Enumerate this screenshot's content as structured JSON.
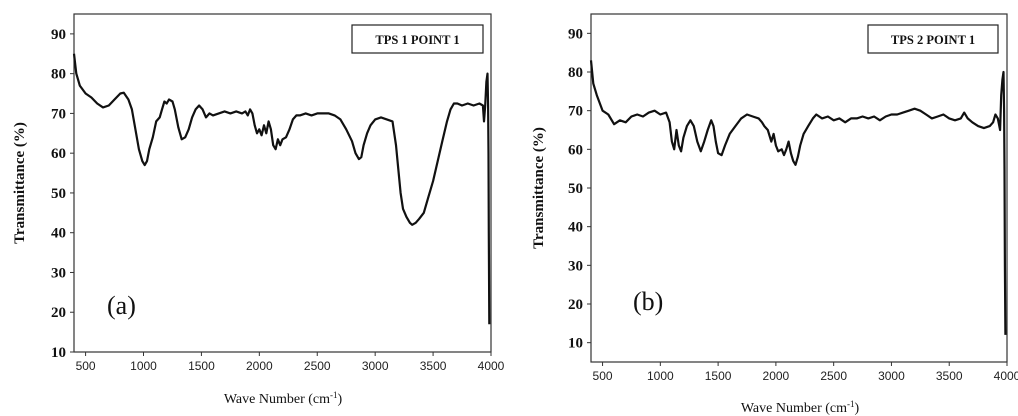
{
  "chart_data": [
    {
      "type": "line",
      "panel_label": "(a)",
      "legend": "TPS 1 POINT 1",
      "xlabel": "Wave Number (cm",
      "xlabel_sup": "-1",
      "xlabel_close": ")",
      "ylabel": "Transmittance (%)",
      "xlim": [
        400,
        4000
      ],
      "ylim": [
        10,
        95
      ],
      "xticks": [
        500,
        1000,
        1500,
        2000,
        2500,
        3000,
        3500,
        4000
      ],
      "yticks": [
        10,
        20,
        30,
        40,
        50,
        60,
        70,
        80,
        90
      ],
      "series": [
        {
          "points": [
            [
              400,
              85
            ],
            [
              420,
              80
            ],
            [
              450,
              77
            ],
            [
              500,
              75
            ],
            [
              550,
              74
            ],
            [
              600,
              72.5
            ],
            [
              650,
              71.5
            ],
            [
              700,
              72
            ],
            [
              750,
              73.5
            ],
            [
              800,
              75
            ],
            [
              830,
              75.2
            ],
            [
              870,
              73.5
            ],
            [
              900,
              71
            ],
            [
              930,
              66
            ],
            [
              960,
              61
            ],
            [
              990,
              58
            ],
            [
              1010,
              57
            ],
            [
              1030,
              58
            ],
            [
              1050,
              61
            ],
            [
              1080,
              64
            ],
            [
              1110,
              68
            ],
            [
              1140,
              69
            ],
            [
              1160,
              71
            ],
            [
              1180,
              73
            ],
            [
              1200,
              72.5
            ],
            [
              1220,
              73.5
            ],
            [
              1250,
              73
            ],
            [
              1270,
              71
            ],
            [
              1300,
              66.5
            ],
            [
              1330,
              63.5
            ],
            [
              1360,
              64
            ],
            [
              1390,
              66
            ],
            [
              1420,
              69
            ],
            [
              1450,
              71
            ],
            [
              1480,
              72
            ],
            [
              1510,
              71
            ],
            [
              1540,
              69
            ],
            [
              1570,
              70
            ],
            [
              1600,
              69.5
            ],
            [
              1650,
              70
            ],
            [
              1700,
              70.5
            ],
            [
              1750,
              70
            ],
            [
              1800,
              70.5
            ],
            [
              1850,
              70
            ],
            [
              1880,
              70.5
            ],
            [
              1900,
              69.5
            ],
            [
              1920,
              71
            ],
            [
              1940,
              70
            ],
            [
              1960,
              67
            ],
            [
              1980,
              65
            ],
            [
              2000,
              66
            ],
            [
              2020,
              64.5
            ],
            [
              2040,
              67
            ],
            [
              2060,
              65
            ],
            [
              2080,
              68
            ],
            [
              2100,
              66
            ],
            [
              2120,
              62
            ],
            [
              2140,
              61
            ],
            [
              2160,
              63.5
            ],
            [
              2180,
              62
            ],
            [
              2200,
              63.5
            ],
            [
              2230,
              64
            ],
            [
              2260,
              66
            ],
            [
              2290,
              68.5
            ],
            [
              2320,
              69.5
            ],
            [
              2350,
              69.5
            ],
            [
              2400,
              70
            ],
            [
              2450,
              69.5
            ],
            [
              2500,
              70
            ],
            [
              2550,
              70
            ],
            [
              2600,
              70
            ],
            [
              2650,
              69.5
            ],
            [
              2700,
              68.5
            ],
            [
              2750,
              66
            ],
            [
              2800,
              63
            ],
            [
              2830,
              60
            ],
            [
              2860,
              58.5
            ],
            [
              2880,
              59
            ],
            [
              2900,
              62
            ],
            [
              2930,
              65
            ],
            [
              2960,
              67
            ],
            [
              3000,
              68.5
            ],
            [
              3050,
              69
            ],
            [
              3100,
              68.5
            ],
            [
              3150,
              68
            ],
            [
              3180,
              62
            ],
            [
              3200,
              56
            ],
            [
              3220,
              50
            ],
            [
              3240,
              46
            ],
            [
              3270,
              44
            ],
            [
              3300,
              42.5
            ],
            [
              3320,
              42
            ],
            [
              3350,
              42.5
            ],
            [
              3380,
              43.5
            ],
            [
              3420,
              45
            ],
            [
              3460,
              49
            ],
            [
              3500,
              53
            ],
            [
              3540,
              58
            ],
            [
              3580,
              63
            ],
            [
              3620,
              68
            ],
            [
              3650,
              71
            ],
            [
              3680,
              72.5
            ],
            [
              3710,
              72.5
            ],
            [
              3750,
              72
            ],
            [
              3800,
              72.5
            ],
            [
              3850,
              72
            ],
            [
              3900,
              72.5
            ],
            [
              3930,
              72
            ],
            [
              3940,
              68
            ],
            [
              3950,
              72
            ],
            [
              3960,
              78
            ],
            [
              3970,
              80
            ],
            [
              3975,
              72
            ],
            [
              3978,
              60
            ],
            [
              3981,
              40
            ],
            [
              3985,
              17
            ]
          ]
        }
      ]
    },
    {
      "type": "line",
      "panel_label": "(b)",
      "legend": "TPS 2 POINT 1",
      "xlabel": "Wave Number (cm",
      "xlabel_sup": "-1",
      "xlabel_close": ")",
      "ylabel": "Transmittance (%)",
      "xlim": [
        400,
        4000
      ],
      "ylim": [
        5,
        95
      ],
      "xticks": [
        500,
        1000,
        1500,
        2000,
        2500,
        3000,
        3500,
        4000
      ],
      "yticks": [
        10,
        20,
        30,
        40,
        50,
        60,
        70,
        80,
        90
      ],
      "series": [
        {
          "points": [
            [
              400,
              83
            ],
            [
              420,
              77
            ],
            [
              450,
              74
            ],
            [
              500,
              70
            ],
            [
              550,
              69
            ],
            [
              600,
              66.5
            ],
            [
              650,
              67.5
            ],
            [
              700,
              67
            ],
            [
              750,
              68.5
            ],
            [
              800,
              69
            ],
            [
              850,
              68.5
            ],
            [
              900,
              69.5
            ],
            [
              950,
              70
            ],
            [
              1000,
              69
            ],
            [
              1050,
              69.5
            ],
            [
              1080,
              67
            ],
            [
              1100,
              62
            ],
            [
              1120,
              60
            ],
            [
              1140,
              65
            ],
            [
              1160,
              61
            ],
            [
              1180,
              59.5
            ],
            [
              1200,
              63
            ],
            [
              1230,
              66
            ],
            [
              1260,
              67.5
            ],
            [
              1290,
              66
            ],
            [
              1320,
              62
            ],
            [
              1350,
              59.5
            ],
            [
              1380,
              62
            ],
            [
              1410,
              65
            ],
            [
              1440,
              67.5
            ],
            [
              1460,
              66
            ],
            [
              1480,
              62
            ],
            [
              1500,
              59
            ],
            [
              1530,
              58.5
            ],
            [
              1560,
              61
            ],
            [
              1600,
              64
            ],
            [
              1650,
              66
            ],
            [
              1700,
              68
            ],
            [
              1750,
              69
            ],
            [
              1800,
              68.5
            ],
            [
              1850,
              68
            ],
            [
              1880,
              67
            ],
            [
              1900,
              66
            ],
            [
              1930,
              65
            ],
            [
              1960,
              62
            ],
            [
              1980,
              64
            ],
            [
              2000,
              61
            ],
            [
              2020,
              59.5
            ],
            [
              2050,
              60
            ],
            [
              2070,
              58.5
            ],
            [
              2090,
              60
            ],
            [
              2110,
              62
            ],
            [
              2130,
              59
            ],
            [
              2150,
              57
            ],
            [
              2170,
              56
            ],
            [
              2190,
              58
            ],
            [
              2210,
              61
            ],
            [
              2240,
              64
            ],
            [
              2280,
              66
            ],
            [
              2320,
              68
            ],
            [
              2350,
              69
            ],
            [
              2400,
              68
            ],
            [
              2450,
              68.5
            ],
            [
              2500,
              67.5
            ],
            [
              2550,
              68
            ],
            [
              2600,
              67
            ],
            [
              2650,
              68
            ],
            [
              2700,
              68
            ],
            [
              2750,
              68.5
            ],
            [
              2800,
              68
            ],
            [
              2850,
              68.5
            ],
            [
              2900,
              67.5
            ],
            [
              2950,
              68.5
            ],
            [
              3000,
              69
            ],
            [
              3050,
              69
            ],
            [
              3100,
              69.5
            ],
            [
              3150,
              70
            ],
            [
              3200,
              70.5
            ],
            [
              3250,
              70
            ],
            [
              3300,
              69
            ],
            [
              3350,
              68
            ],
            [
              3400,
              68.5
            ],
            [
              3450,
              69
            ],
            [
              3500,
              68
            ],
            [
              3550,
              67.5
            ],
            [
              3600,
              68
            ],
            [
              3630,
              69.5
            ],
            [
              3660,
              68
            ],
            [
              3700,
              67
            ],
            [
              3750,
              66
            ],
            [
              3800,
              65.5
            ],
            [
              3850,
              66
            ],
            [
              3880,
              67
            ],
            [
              3900,
              69
            ],
            [
              3920,
              68
            ],
            [
              3940,
              65
            ],
            [
              3950,
              74
            ],
            [
              3960,
              78
            ],
            [
              3970,
              80
            ],
            [
              3975,
              70
            ],
            [
              3978,
              55
            ],
            [
              3982,
              30
            ],
            [
              3986,
              12
            ]
          ]
        }
      ]
    }
  ]
}
